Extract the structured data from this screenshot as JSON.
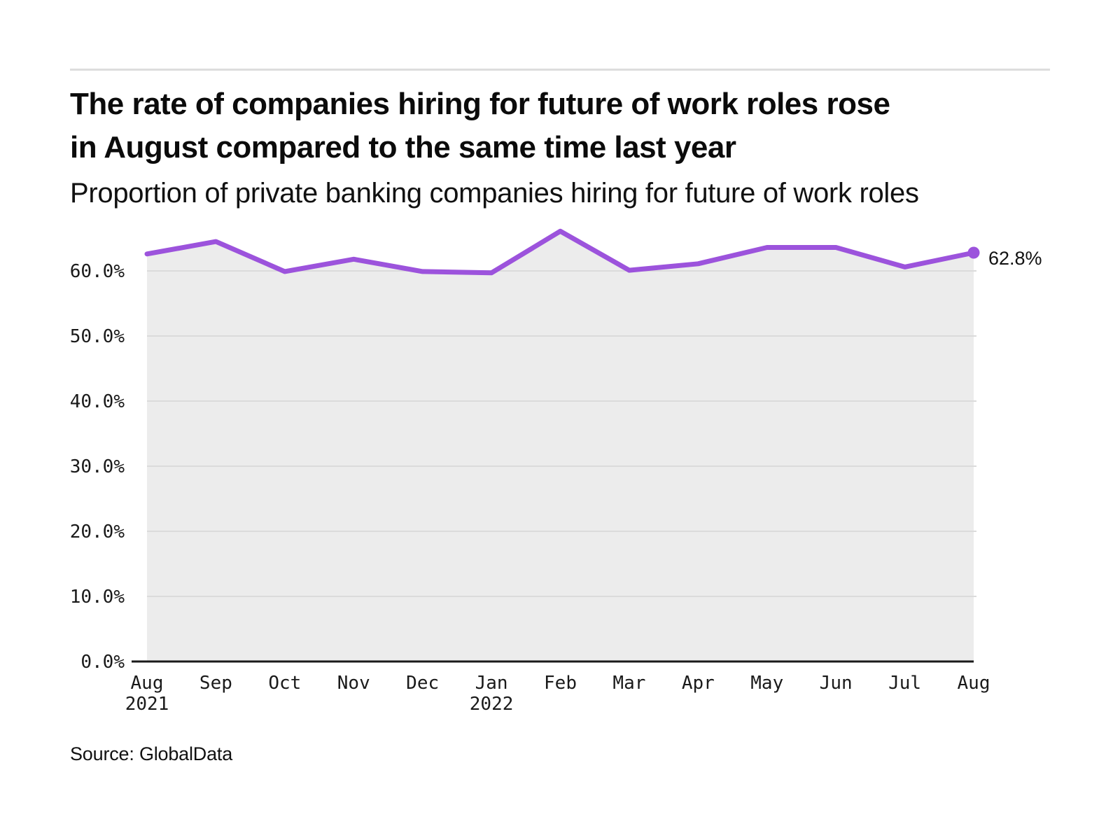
{
  "header": {
    "title_line1": "The rate of companies hiring for future of work roles rose",
    "title_line2": "in August compared to the same time last year",
    "subtitle": "Proportion of private banking companies hiring for future of work roles"
  },
  "chart_data": {
    "type": "line",
    "title": "The rate of companies hiring for future of work roles rose in August compared to the same time last year",
    "subtitle": "Proportion of private banking companies hiring for future of work roles",
    "categories": [
      {
        "label": "Aug",
        "sublabel": "2021"
      },
      {
        "label": "Sep"
      },
      {
        "label": "Oct"
      },
      {
        "label": "Nov"
      },
      {
        "label": "Dec"
      },
      {
        "label": "Jan",
        "sublabel": "2022"
      },
      {
        "label": "Feb"
      },
      {
        "label": "Mar"
      },
      {
        "label": "Apr"
      },
      {
        "label": "May"
      },
      {
        "label": "Jun"
      },
      {
        "label": "Jul"
      },
      {
        "label": "Aug"
      }
    ],
    "values": [
      62.6,
      64.5,
      59.9,
      61.8,
      59.9,
      59.7,
      66.1,
      60.1,
      61.1,
      63.6,
      63.6,
      60.6,
      62.8
    ],
    "end_label": "62.8%",
    "xlabel": "",
    "ylabel": "",
    "ylim": [
      0,
      67
    ],
    "yticks": [
      {
        "value": 0,
        "label": "0.0%"
      },
      {
        "value": 10,
        "label": "10.0%"
      },
      {
        "value": 20,
        "label": "20.0%"
      },
      {
        "value": 30,
        "label": "30.0%"
      },
      {
        "value": 40,
        "label": "40.0%"
      },
      {
        "value": 50,
        "label": "50.0%"
      },
      {
        "value": 60,
        "label": "60.0%"
      }
    ],
    "grid": true,
    "legend": false,
    "colors": {
      "line": "#9C53DC",
      "area": "#ECECEC",
      "grid": "#DBDBDB",
      "axis": "#1A1A1A",
      "text": "#1A1A1A"
    }
  },
  "footer": {
    "source": "Source: GlobalData"
  }
}
